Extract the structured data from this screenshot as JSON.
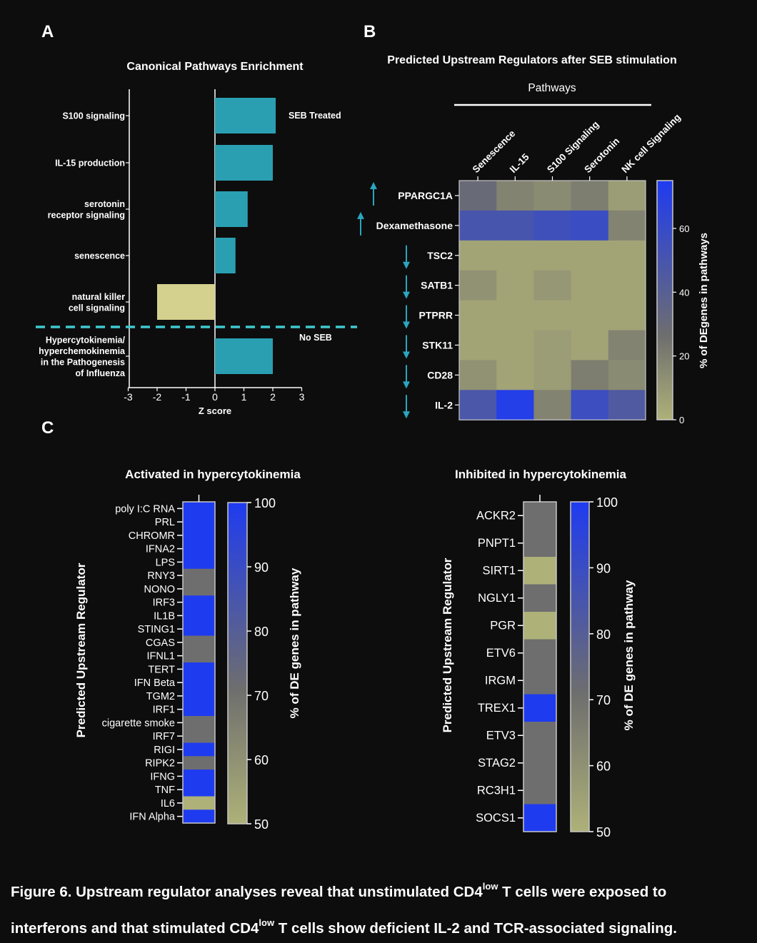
{
  "chart_data": [
    {
      "panel": "A",
      "type": "bar",
      "orientation": "horizontal",
      "title": "Canonical Pathways Enrichment",
      "xlabel": "Z score",
      "xlim": [
        -3,
        3
      ],
      "xticks": [
        "-3",
        "-2",
        "-1",
        "0",
        "1",
        "2",
        "3"
      ],
      "groups": [
        {
          "label": "SEB Treated",
          "bars": [
            {
              "category": [
                "S100 signaling"
              ],
              "value": 2.1
            },
            {
              "category": [
                "IL-15 production"
              ],
              "value": 2.0
            },
            {
              "category": [
                "serotonin",
                "receptor signaling"
              ],
              "value": 1.13
            },
            {
              "category": [
                "senescence"
              ],
              "value": 0.71
            },
            {
              "category": [
                "natural killer",
                "cell signaling"
              ],
              "value": -2.0
            }
          ]
        },
        {
          "label": "No SEB",
          "bars": [
            {
              "category": [
                "Hypercytokinemia/",
                "hyperchemokinemia",
                "in the Pathogenesis",
                "of Influenza"
              ],
              "value": 2.0
            }
          ]
        }
      ],
      "colors": {
        "positive": "#2a9fb2",
        "negative": "#d4d18f",
        "divider": "#3ec9d0"
      }
    },
    {
      "panel": "B",
      "type": "heatmap",
      "title": "Predicted Upstream Regulators after SEB stimulation",
      "column_group_label": "Pathways",
      "columns": [
        "Senescence",
        "IL-15",
        "S100 Signaling",
        "Serotonin",
        "NK cell Signaling"
      ],
      "rows": [
        {
          "name": "PPARGC1A",
          "direction": "up",
          "values": [
            30,
            18,
            15,
            20,
            8
          ]
        },
        {
          "name": "Dexamethasone",
          "direction": "up",
          "values": [
            50,
            50,
            55,
            58,
            18
          ]
        },
        {
          "name": "TSC2",
          "direction": "down",
          "values": [
            5,
            5,
            5,
            5,
            5
          ]
        },
        {
          "name": "SATB1",
          "direction": "down",
          "values": [
            12,
            5,
            10,
            5,
            5
          ]
        },
        {
          "name": "PTPRR",
          "direction": "down",
          "values": [
            5,
            5,
            5,
            5,
            5
          ]
        },
        {
          "name": "STK11",
          "direction": "down",
          "values": [
            5,
            5,
            8,
            5,
            18
          ]
        },
        {
          "name": "CD28",
          "direction": "down",
          "values": [
            12,
            5,
            8,
            20,
            15
          ]
        },
        {
          "name": "IL-2",
          "direction": "down",
          "values": [
            48,
            72,
            18,
            57,
            45
          ]
        }
      ],
      "colorbar": {
        "label": "% of DEgenes in pathways",
        "range": [
          0,
          75
        ],
        "ticks": [
          "0",
          "20",
          "40",
          "60"
        ],
        "tick_values": [
          0,
          20,
          40,
          60
        ]
      }
    },
    {
      "panel": "C",
      "type": "heatmap",
      "title": "Activated in hypercytokinemia",
      "ylabel": "Predicted Upstream Regulator",
      "rows": [
        {
          "name": "poly I:C RNA",
          "value": 100
        },
        {
          "name": "PRL",
          "value": 100
        },
        {
          "name": "CHROMR",
          "value": 100
        },
        {
          "name": "IFNA2",
          "value": 100
        },
        {
          "name": "LPS",
          "value": 100
        },
        {
          "name": "RNY3",
          "value": 71
        },
        {
          "name": "NONO",
          "value": 71
        },
        {
          "name": "IRF3",
          "value": 100
        },
        {
          "name": "IL1B",
          "value": 100
        },
        {
          "name": "STING1",
          "value": 100
        },
        {
          "name": "CGAS",
          "value": 71
        },
        {
          "name": "IFNL1",
          "value": 71
        },
        {
          "name": "TERT",
          "value": 100
        },
        {
          "name": "IFN Beta",
          "value": 100
        },
        {
          "name": "TGM2",
          "value": 100
        },
        {
          "name": "IRF1",
          "value": 100
        },
        {
          "name": "cigarette smoke",
          "value": 71
        },
        {
          "name": "IRF7",
          "value": 71
        },
        {
          "name": "RIGI",
          "value": 100
        },
        {
          "name": "RIPK2",
          "value": 71
        },
        {
          "name": "IFNG",
          "value": 100
        },
        {
          "name": "TNF",
          "value": 100
        },
        {
          "name": "IL6",
          "value": 50
        },
        {
          "name": "IFN Alpha",
          "value": 100
        }
      ],
      "colorbar": {
        "label": "% of DE genes in pathway",
        "range": [
          50,
          100
        ],
        "ticks": [
          "50",
          "60",
          "70",
          "80",
          "90",
          "100"
        ],
        "tick_values": [
          50,
          60,
          70,
          80,
          90,
          100
        ]
      }
    },
    {
      "panel": "C",
      "type": "heatmap",
      "title": "Inhibited in hypercytokinemia",
      "ylabel": "Predicted Upstream Regulator",
      "rows": [
        {
          "name": "ACKR2",
          "value": 71
        },
        {
          "name": "PNPT1",
          "value": 71
        },
        {
          "name": "SIRT1",
          "value": 50
        },
        {
          "name": "NGLY1",
          "value": 71
        },
        {
          "name": "PGR",
          "value": 50
        },
        {
          "name": "ETV6",
          "value": 71
        },
        {
          "name": "IRGM",
          "value": 71
        },
        {
          "name": "TREX1",
          "value": 100
        },
        {
          "name": "ETV3",
          "value": 71
        },
        {
          "name": "STAG2",
          "value": 71
        },
        {
          "name": "RC3H1",
          "value": 71
        },
        {
          "name": "SOCS1",
          "value": 100
        }
      ],
      "colorbar": {
        "label": "% of DE genes in pathway",
        "range": [
          50,
          100
        ],
        "ticks": [
          "50",
          "60",
          "70",
          "80",
          "90",
          "100"
        ],
        "tick_values": [
          50,
          60,
          70,
          80,
          90,
          100
        ]
      }
    }
  ],
  "panel_labels": {
    "a": "A",
    "b": "B",
    "c": "C"
  },
  "caption": {
    "line1_before": "Figure 6. Upstream regulator analyses reveal that unstimulated CD4",
    "line1_sup": "low",
    "line1_after": " T cells were exposed to",
    "line2_before": "interferons and that stimulated CD4",
    "line2_sup": "low",
    "line2_after": " T cells show deficient IL-2 and TCR-associated signaling."
  }
}
